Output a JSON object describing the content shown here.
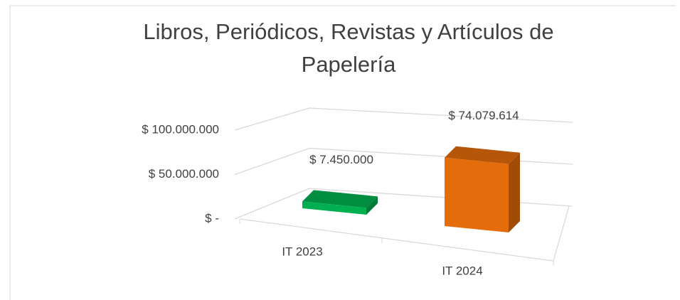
{
  "chart_data": {
    "type": "bar3d",
    "title": "Libros, Periódicos, Revistas y Artículos de Papelería",
    "categories": [
      "IT 2023",
      "IT 2024"
    ],
    "values": [
      7450000,
      74079614
    ],
    "value_labels": [
      "$ 7.450.000",
      "$ 74.079.614"
    ],
    "colors": [
      "#00b050",
      "#e46c0a"
    ],
    "ylim": [
      0,
      100000000
    ],
    "yticks": [
      {
        "value": 0,
        "label": "$ -"
      },
      {
        "value": 50000000,
        "label": "$ 50.000.000"
      },
      {
        "value": 100000000,
        "label": "$ 100.000.000"
      }
    ],
    "grid": true
  }
}
